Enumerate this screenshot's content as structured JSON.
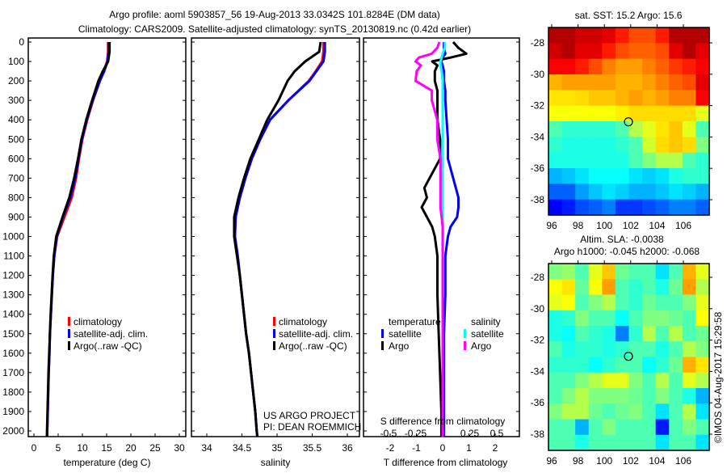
{
  "header": {
    "title_line1": "Argo profile: aoml 5903857_56 19-Aug-2013 33.0342S 101.8284E (DM data)",
    "title_line2": "Climatology: CARS2009. Satellite-adjusted climatology: synTS_20130819.nc (0.42d earlier)"
  },
  "colors": {
    "climatology": "#ff0000",
    "satellite": "#0000ff",
    "argo": "#000000",
    "sal_satellite": "#00ffff",
    "sal_argo": "#ff00ff"
  },
  "chart_data": [
    {
      "type": "line",
      "name": "temperature-profile",
      "xlabel": "temperature (deg C)",
      "ylabel": "",
      "xlim": [
        -1,
        31
      ],
      "ylim": [
        2050,
        0
      ],
      "xticks": [
        "0",
        "5",
        "10",
        "15",
        "20",
        "25",
        "30"
      ],
      "yticks": [
        "0",
        "100",
        "200",
        "300",
        "400",
        "500",
        "600",
        "700",
        "800",
        "900",
        "1000",
        "1100",
        "1200",
        "1300",
        "1400",
        "1500",
        "1600",
        "1700",
        "1800",
        "1900",
        "2000"
      ],
      "depth": [
        0,
        50,
        100,
        150,
        200,
        300,
        400,
        500,
        600,
        700,
        800,
        900,
        1000,
        1100,
        1200,
        1300,
        1400,
        1500,
        1600,
        1700,
        1800,
        1900,
        2000,
        2030
      ],
      "series": [
        {
          "name": "climatology",
          "values": [
            15.3,
            15.3,
            15.1,
            14.4,
            13.6,
            12.2,
            11.0,
            10.0,
            9.3,
            8.7,
            7.8,
            6.3,
            4.8,
            4.2,
            3.9,
            3.7,
            3.5,
            3.3,
            3.2,
            3.05,
            2.95,
            2.85,
            2.75,
            2.7
          ]
        },
        {
          "name": "satellite-adj. clim.",
          "values": [
            15.4,
            15.4,
            15.2,
            14.5,
            13.6,
            12.1,
            10.9,
            9.9,
            9.2,
            8.5,
            7.5,
            6.0,
            4.7,
            4.2,
            3.9,
            3.7,
            3.5,
            3.3,
            3.2,
            3.05,
            2.95,
            2.85,
            2.75,
            2.7
          ]
        },
        {
          "name": "Argo(..raw -QC)",
          "values": [
            15.6,
            15.6,
            15.3,
            14.2,
            13.3,
            12.0,
            10.8,
            9.8,
            9.1,
            8.3,
            7.3,
            5.9,
            4.6,
            4.1,
            3.85,
            3.65,
            3.45,
            3.3,
            3.15,
            3.0,
            2.9,
            2.8,
            2.7,
            2.7
          ]
        }
      ],
      "legend": [
        "climatology",
        "satellite-adj. clim.",
        "Argo(..raw -QC)"
      ]
    },
    {
      "type": "line",
      "name": "salinity-profile",
      "xlabel": "salinity",
      "xlim": [
        33.8,
        36.1
      ],
      "ylim": [
        2050,
        0
      ],
      "xticks": [
        "34",
        "34.5",
        "35",
        "35.5",
        "36"
      ],
      "depth": [
        0,
        50,
        100,
        150,
        200,
        300,
        400,
        500,
        600,
        700,
        800,
        900,
        1000,
        1100,
        1200,
        1300,
        1400,
        1500,
        1600,
        1700,
        1800,
        1900,
        2000,
        2030
      ],
      "series": [
        {
          "name": "climatology",
          "values": [
            35.66,
            35.66,
            35.64,
            35.55,
            35.45,
            35.16,
            34.9,
            34.76,
            34.64,
            34.55,
            34.47,
            34.41,
            34.4,
            34.44,
            34.47,
            34.5,
            34.53,
            34.56,
            34.6,
            34.63,
            34.66,
            34.69,
            34.71,
            34.72
          ]
        },
        {
          "name": "satellite-adj. clim.",
          "values": [
            35.68,
            35.68,
            35.66,
            35.56,
            35.46,
            35.16,
            34.9,
            34.76,
            34.64,
            34.55,
            34.47,
            34.41,
            34.4,
            34.44,
            34.47,
            34.5,
            34.53,
            34.56,
            34.6,
            34.63,
            34.66,
            34.69,
            34.71,
            34.72
          ]
        },
        {
          "name": "Argo(..raw -QC)",
          "values": [
            35.62,
            35.6,
            35.4,
            35.25,
            35.15,
            35.02,
            34.86,
            34.74,
            34.62,
            34.53,
            34.45,
            34.39,
            34.39,
            34.43,
            34.47,
            34.5,
            34.53,
            34.56,
            34.6,
            34.63,
            34.66,
            34.69,
            34.71,
            34.72
          ]
        }
      ],
      "legend": [
        "climatology",
        "satellite-adj. clim.",
        "Argo(..raw -QC)"
      ],
      "annotation": [
        "US ARGO PROJECT",
        "PI: DEAN ROEMMICH"
      ]
    },
    {
      "type": "line",
      "name": "difference-profile",
      "xlabel": "T difference from climatology",
      "x2label": "S difference from climatology",
      "xlim": [
        -3,
        3
      ],
      "x2lim": [
        -0.75,
        0.75
      ],
      "ylim": [
        2050,
        0
      ],
      "xticks": [
        "-2",
        "-1",
        "0",
        "1",
        "2"
      ],
      "x2ticks": [
        "-0.5",
        "-0.25",
        "0",
        "0.25",
        "0.5"
      ],
      "depth": [
        0,
        30,
        60,
        80,
        100,
        120,
        150,
        200,
        250,
        300,
        400,
        500,
        600,
        700,
        750,
        800,
        850,
        900,
        950,
        1000,
        1100,
        1200,
        1300,
        1500,
        1700,
        1900,
        2000,
        2030
      ],
      "series": [
        {
          "name": "temperature satellite",
          "group": "T",
          "values": [
            0.05,
            0.05,
            0.1,
            0.0,
            -0.05,
            0.0,
            0.05,
            0.05,
            0.1,
            0.1,
            0.15,
            0.2,
            0.2,
            0.4,
            0.5,
            0.6,
            0.6,
            0.55,
            0.3,
            0.2,
            0.1,
            0.1,
            0.1,
            0.05,
            0.05,
            0.05,
            0.05,
            0.05
          ]
        },
        {
          "name": "temperature Argo",
          "group": "T",
          "values": [
            0.4,
            0.6,
            0.9,
            0.3,
            -0.4,
            -0.2,
            -0.3,
            -0.3,
            -0.2,
            -0.2,
            -0.2,
            -0.1,
            -0.1,
            -0.5,
            -0.7,
            -0.6,
            -0.8,
            -0.6,
            -0.4,
            -0.3,
            -0.2,
            -0.2,
            -0.2,
            -0.15,
            -0.1,
            -0.05,
            -0.05,
            -0.05
          ]
        },
        {
          "name": "salinity satellite",
          "group": "S",
          "values": [
            0.02,
            0.02,
            0.0,
            -0.01,
            -0.02,
            -0.02,
            -0.01,
            0.0,
            0.0,
            0.0,
            0.0,
            0.0,
            0.0,
            0.0,
            0.0,
            0.0,
            0.0,
            0.0,
            0.0,
            0.0,
            0.0,
            0.0,
            0.0,
            0.0,
            0.0,
            0.0,
            0.0,
            0.0
          ]
        },
        {
          "name": "salinity Argo",
          "group": "S",
          "values": [
            -0.03,
            -0.05,
            -0.1,
            -0.22,
            -0.25,
            -0.2,
            -0.24,
            -0.25,
            -0.1,
            -0.1,
            -0.05,
            -0.05,
            -0.02,
            -0.02,
            -0.02,
            -0.02,
            -0.02,
            -0.01,
            0.0,
            0.0,
            0.0,
            0.0,
            0.0,
            0.0,
            0.0,
            0.0,
            0.0,
            0.0
          ]
        }
      ],
      "legend_temperature": {
        "title": "temperature",
        "items": [
          "satellite",
          "Argo"
        ]
      },
      "legend_salinity": {
        "title": "salinity",
        "items": [
          "satellite",
          "Argo"
        ]
      }
    },
    {
      "type": "heatmap",
      "name": "sst-map",
      "title": "sat. SST: 15.2 Argo: 15.6",
      "xlim": [
        95.8,
        108
      ],
      "ylim": [
        -39,
        -27
      ],
      "xticks": [
        "96",
        "98",
        "100",
        "102",
        "104",
        "106"
      ],
      "yticks": [
        "-28",
        "-30",
        "-32",
        "-34",
        "-36",
        "-38"
      ],
      "float_position": [
        101.8284,
        -33.0342
      ],
      "grid": [
        [
          0.95,
          0.95,
          0.92,
          0.92,
          0.9,
          0.85,
          0.8,
          0.8,
          0.85,
          0.95,
          0.95,
          0.95
        ],
        [
          0.92,
          0.95,
          0.9,
          0.9,
          0.85,
          0.8,
          0.78,
          0.78,
          0.8,
          0.9,
          0.95,
          0.9
        ],
        [
          0.88,
          0.88,
          0.85,
          0.8,
          0.75,
          0.72,
          0.72,
          0.75,
          0.78,
          0.82,
          0.85,
          0.88
        ],
        [
          0.7,
          0.72,
          0.72,
          0.72,
          0.72,
          0.7,
          0.7,
          0.72,
          0.75,
          0.78,
          0.8,
          0.9
        ],
        [
          0.65,
          0.65,
          0.66,
          0.68,
          0.68,
          0.7,
          0.72,
          0.7,
          0.72,
          0.75,
          0.75,
          0.88
        ],
        [
          0.62,
          0.62,
          0.62,
          0.62,
          0.62,
          0.64,
          0.66,
          0.66,
          0.66,
          0.66,
          0.66,
          0.6
        ],
        [
          0.45,
          0.42,
          0.42,
          0.42,
          0.42,
          0.45,
          0.55,
          0.6,
          0.65,
          0.68,
          0.6,
          0.45
        ],
        [
          0.42,
          0.4,
          0.4,
          0.4,
          0.4,
          0.42,
          0.45,
          0.58,
          0.66,
          0.68,
          0.66,
          0.5
        ],
        [
          0.4,
          0.4,
          0.4,
          0.4,
          0.4,
          0.4,
          0.45,
          0.5,
          0.55,
          0.55,
          0.45,
          0.42
        ],
        [
          0.3,
          0.32,
          0.35,
          0.38,
          0.38,
          0.38,
          0.35,
          0.33,
          0.35,
          0.4,
          0.42,
          0.42
        ],
        [
          0.22,
          0.22,
          0.28,
          0.32,
          0.35,
          0.33,
          0.3,
          0.3,
          0.32,
          0.35,
          0.33,
          0.3
        ],
        [
          0.12,
          0.15,
          0.2,
          0.22,
          0.25,
          0.18,
          0.18,
          0.2,
          0.22,
          0.25,
          0.25,
          0.22
        ]
      ]
    },
    {
      "type": "heatmap",
      "name": "sla-map",
      "title_line1": "Altim. SLA: -0.0038",
      "title_line2": "Argo h1000: -0.045 h2000: -0.068",
      "xlim": [
        95.8,
        108
      ],
      "ylim": [
        -39,
        -27
      ],
      "xticks": [
        "96",
        "98",
        "100",
        "102",
        "104",
        "106"
      ],
      "yticks": [
        "-28",
        "-30",
        "-32",
        "-34",
        "-36",
        "-38"
      ],
      "float_position": [
        101.8284,
        -33.0342
      ],
      "grid": [
        [
          0.5,
          0.52,
          0.45,
          0.6,
          0.68,
          0.48,
          0.45,
          0.45,
          0.35,
          0.45,
          0.7,
          0.6
        ],
        [
          0.62,
          0.65,
          0.47,
          0.62,
          0.72,
          0.45,
          0.42,
          0.45,
          0.4,
          0.48,
          0.72,
          0.55
        ],
        [
          0.6,
          0.62,
          0.45,
          0.5,
          0.55,
          0.45,
          0.42,
          0.48,
          0.45,
          0.45,
          0.5,
          0.6
        ],
        [
          0.4,
          0.42,
          0.5,
          0.45,
          0.45,
          0.38,
          0.45,
          0.5,
          0.5,
          0.48,
          0.45,
          0.62
        ],
        [
          0.4,
          0.38,
          0.45,
          0.42,
          0.4,
          0.25,
          0.42,
          0.55,
          0.45,
          0.55,
          0.45,
          0.48
        ],
        [
          0.45,
          0.4,
          0.42,
          0.42,
          0.4,
          0.42,
          0.45,
          0.45,
          0.4,
          0.45,
          0.55,
          0.5
        ],
        [
          0.42,
          0.42,
          0.42,
          0.38,
          0.42,
          0.45,
          0.45,
          0.38,
          0.42,
          0.48,
          0.7,
          0.65
        ],
        [
          0.45,
          0.45,
          0.5,
          0.55,
          0.6,
          0.6,
          0.5,
          0.45,
          0.55,
          0.45,
          0.6,
          0.55
        ],
        [
          0.45,
          0.5,
          0.55,
          0.5,
          0.5,
          0.5,
          0.48,
          0.45,
          0.5,
          0.45,
          0.4,
          0.3
        ],
        [
          0.5,
          0.55,
          0.55,
          0.48,
          0.45,
          0.48,
          0.5,
          0.45,
          0.35,
          0.45,
          0.55,
          0.35
        ],
        [
          0.45,
          0.45,
          0.3,
          0.45,
          0.5,
          0.45,
          0.45,
          0.45,
          0.15,
          0.45,
          0.5,
          0.45
        ],
        [
          0.45,
          0.45,
          0.4,
          0.45,
          0.45,
          0.45,
          0.45,
          0.45,
          0.35,
          0.45,
          0.45,
          0.35
        ]
      ]
    }
  ],
  "footer": {
    "copyright": "©IMOS 04-Aug-2017 15:29:58"
  }
}
